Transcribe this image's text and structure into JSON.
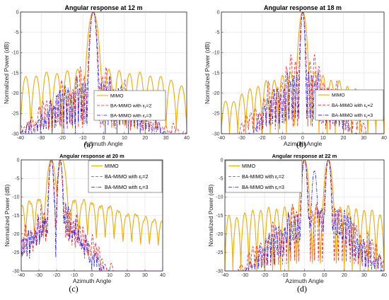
{
  "chart_data": [
    {
      "type": "line",
      "title": "Angular response at 12 m",
      "xlabel": "Azimuth Angle",
      "ylabel": "Normalized Power (dB)",
      "xlim": [
        -40,
        40
      ],
      "ylim": [
        -30,
        0
      ],
      "xticks": [
        -40,
        -30,
        -20,
        -10,
        0,
        10,
        20,
        30,
        40
      ],
      "yticks": [
        0,
        -5,
        -10,
        -15,
        -20,
        -25,
        -30
      ],
      "grid": true,
      "legend_position": "bottom-right",
      "caption": "(a)",
      "series": [
        {
          "name": "MIMO",
          "color": "#f2a900",
          "style": "solid",
          "peak": -5,
          "mainlobe_halfwidth": 5,
          "sidelobe_spacing": 5,
          "first_sidelobe_db": -13.5,
          "sidelobe_decay": 0.11,
          "floor": -30
        },
        {
          "name": "BA-MIMO with ε_r=2",
          "subscript": "r",
          "color": "#ff1a1a",
          "style": "dashed",
          "peak": -5,
          "mainlobe_halfwidth": 3.5,
          "sidelobe_spacing": 1.8,
          "first_sidelobe_db": -14,
          "sidelobe_decay": 0.2,
          "floor": -30
        },
        {
          "name": "BA-MIMO with ε_r=3",
          "subscript": "r",
          "color": "#1a1aff",
          "style": "dashdot",
          "peak": -5,
          "mainlobe_halfwidth": 3,
          "sidelobe_spacing": 1.4,
          "first_sidelobe_db": -15,
          "sidelobe_decay": 0.23,
          "floor": -30
        }
      ]
    },
    {
      "type": "line",
      "title": "Angular response at 18 m",
      "xlabel": "Azimuth Angle",
      "ylabel": "Normalized Power (dB)",
      "xlim": [
        -40,
        40
      ],
      "ylim": [
        -30,
        0
      ],
      "xticks": [
        -40,
        -30,
        -20,
        -10,
        0,
        10,
        20,
        30,
        40
      ],
      "yticks": [
        0,
        -5,
        -10,
        -15,
        -20,
        -25,
        -30
      ],
      "grid": true,
      "legend_position": "bottom-right",
      "caption": "(b)",
      "series": [
        {
          "name": "MIMO",
          "color": "#f2a900",
          "style": "solid",
          "peak": 0,
          "mainlobe_halfwidth": 4,
          "sidelobe_spacing": 4,
          "first_sidelobe_db": -14,
          "sidelobe_decay": 0.25,
          "floor": -30
        },
        {
          "name": "BA-MIMO with ε_r=2",
          "subscript": "r",
          "color": "#ff1a1a",
          "style": "dashed",
          "peak": 0,
          "mainlobe_halfwidth": 2.5,
          "sidelobe_spacing": 2.2,
          "first_sidelobe_db": -10,
          "sidelobe_decay": 0.3,
          "floor": -30
        },
        {
          "name": "BA-MIMO with ε_r=3",
          "subscript": "r",
          "color": "#1a1aff",
          "style": "dashdot",
          "peak": 0,
          "mainlobe_halfwidth": 2,
          "sidelobe_spacing": 1.6,
          "first_sidelobe_db": -12,
          "sidelobe_decay": 0.35,
          "floor": -30
        }
      ]
    },
    {
      "type": "line",
      "title": "Angular response at 20 m",
      "xlabel": "Azimuth Angle",
      "ylabel": "Normalized Power (dB)",
      "xlim": [
        -40,
        40
      ],
      "ylim": [
        -30,
        0
      ],
      "xticks": [
        -40,
        -30,
        -20,
        -10,
        0,
        10,
        20,
        30,
        40
      ],
      "yticks": [
        0,
        -5,
        -10,
        -15,
        -20,
        -25,
        -30
      ],
      "grid": true,
      "legend_position": "top-right",
      "caption": "(c)",
      "series": [
        {
          "name": "MIMO",
          "color": "#f2a900",
          "style": "solid",
          "peaks": [
            -23,
            -17
          ],
          "mainlobe_halfwidth": 5,
          "sidelobe_spacing": 5,
          "first_sidelobe_db": -10,
          "sidelobe_decay": 0.12,
          "floor": -30
        },
        {
          "name": "BA-MIMO with ε_r=2",
          "subscript": "r",
          "color": "#ff1a1a",
          "style": "dashed",
          "peaks": [
            -23,
            -18
          ],
          "mainlobe_halfwidth": 3,
          "sidelobe_spacing": 1.8,
          "first_sidelobe_db": -12,
          "sidelobe_decay": 0.3,
          "floor": -30
        },
        {
          "name": "BA-MIMO with ε_r=3",
          "subscript": "r",
          "color": "#1a1aff",
          "style": "dashdot",
          "peaks": [
            -23,
            -18
          ],
          "mainlobe_halfwidth": 2.5,
          "sidelobe_spacing": 1.4,
          "first_sidelobe_db": -13,
          "sidelobe_decay": 0.35,
          "floor": -30
        }
      ]
    },
    {
      "type": "line",
      "title": "Angular response at 22 m",
      "xlabel": "Azimuth Angle",
      "ylabel": "Normalized Power (dB)",
      "xlim": [
        -40,
        40
      ],
      "ylim": [
        -30,
        0
      ],
      "xticks": [
        -40,
        -30,
        -20,
        -10,
        0,
        10,
        20,
        30,
        40
      ],
      "yticks": [
        0,
        -5,
        -10,
        -15,
        -20,
        -25,
        -30
      ],
      "grid": true,
      "legend_position": "top-left",
      "caption": "(d)",
      "series": [
        {
          "name": "MIMO",
          "color": "#f2a900",
          "style": "solid",
          "peaks": [
            0,
            12
          ],
          "mainlobe_halfwidth": 4,
          "sidelobe_spacing": 4,
          "first_sidelobe_db": -12,
          "sidelobe_decay": 0.1,
          "floor": -30
        },
        {
          "name": "BA-MIMO with ε_r=2",
          "subscript": "r",
          "color": "#ff1a1a",
          "style": "dashed",
          "peaks": [
            0,
            12
          ],
          "peak_levels": [
            0,
            0
          ],
          "mainlobe_halfwidth": 3,
          "sidelobe_spacing": 2,
          "first_sidelobe_db": -12,
          "sidelobe_decay": 0.25,
          "floor": -30
        },
        {
          "name": "BA-MIMO with ε_r=3",
          "subscript": "r",
          "color": "#1a1aff",
          "style": "dashdot",
          "peaks": [
            0,
            5,
            12
          ],
          "peak_levels": [
            0,
            -3,
            0
          ],
          "mainlobe_halfwidth": 2.5,
          "sidelobe_spacing": 1.6,
          "first_sidelobe_db": -12,
          "sidelobe_decay": 0.3,
          "floor": -30
        }
      ]
    }
  ]
}
